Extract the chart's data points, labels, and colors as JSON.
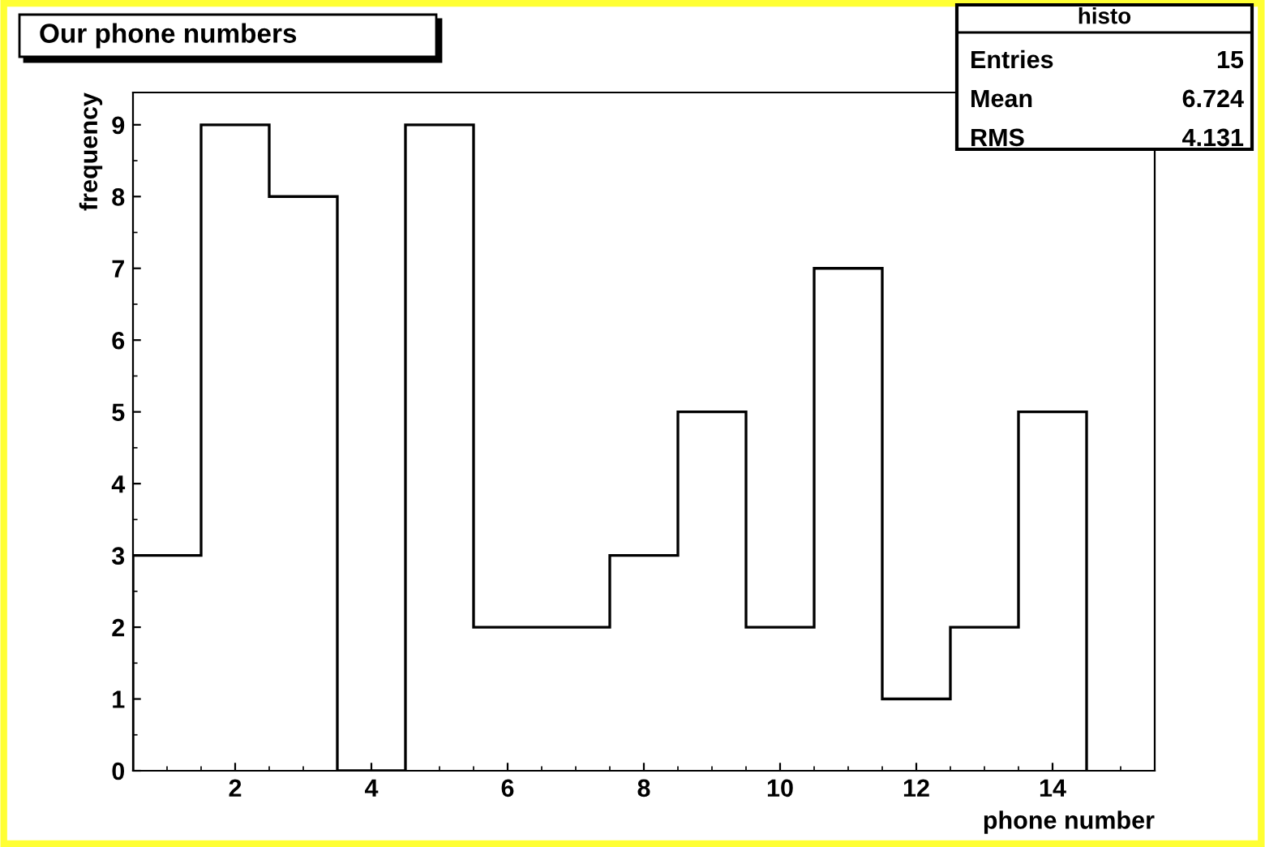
{
  "chart_data": {
    "type": "histogram",
    "title": "Our phone numbers",
    "xlabel": "phone number",
    "ylabel": "frequency",
    "bins": [
      0.5,
      1.5,
      2.5,
      3.5,
      4.5,
      5.5,
      6.5,
      7.5,
      8.5,
      9.5,
      10.5,
      11.5,
      12.5,
      13.5,
      14.5
    ],
    "values": [
      3,
      9,
      8,
      0,
      9,
      2,
      2,
      3,
      5,
      2,
      7,
      1,
      2,
      5
    ],
    "color": "#000000",
    "xlim": [
      0.5,
      15.5
    ],
    "ylim": [
      0,
      9.45
    ],
    "xticks": [
      2,
      4,
      6,
      8,
      10,
      12,
      14
    ],
    "yticks": [
      0,
      1,
      2,
      3,
      4,
      5,
      6,
      7,
      8,
      9
    ],
    "grid": false,
    "legend": false,
    "annotations": [
      "histo",
      "Entries",
      "15",
      "Mean",
      "6.724",
      "RMS",
      "4.131"
    ]
  }
}
